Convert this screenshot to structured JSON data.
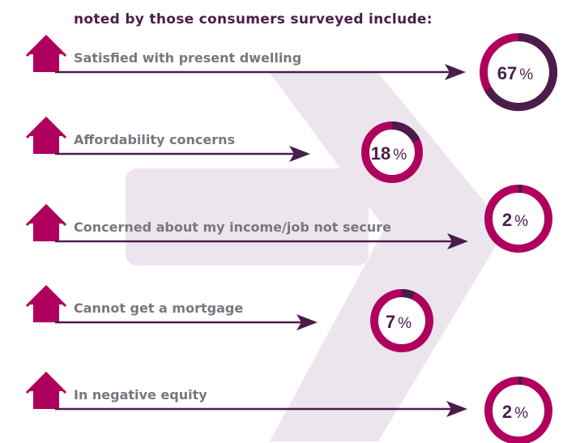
{
  "header": {
    "text": "noted by those consumers surveyed include:"
  },
  "colors": {
    "arrow": "#4a1d4a",
    "house": "#b0005e",
    "ring_value": "#4a1d4a",
    "ring_rest": "#b0005e",
    "chevron_bg": "#ece5ee",
    "label": "#7a7580",
    "number": "#4a1d4a"
  },
  "icons": {
    "house": "house-icon"
  },
  "chart_data": {
    "type": "pie",
    "unit": "%",
    "categories": [
      "Satisfied with present dwelling",
      "Affordability concerns",
      "Concerned about my income/job not secure",
      "Cannot get a mortgage",
      "In negative equity"
    ],
    "values": [
      67,
      18,
      2,
      7,
      2
    ],
    "percent_symbol": "%"
  }
}
